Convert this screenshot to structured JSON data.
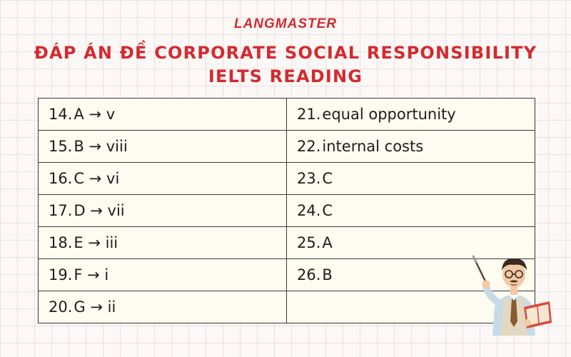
{
  "brand": {
    "name": "LANGMASTER",
    "color": "#d32a2f"
  },
  "title": {
    "line1": "ĐÁP ÁN ĐỀ CORPORATE SOCIAL RESPONSIBILITY",
    "line2": "IELTS READING",
    "color": "#d32a2f"
  },
  "answers": {
    "rows": [
      {
        "left_num": "14.",
        "left_ans": "A → v",
        "right_num": "21.",
        "right_ans": "equal opportunity"
      },
      {
        "left_num": "15.",
        "left_ans": "B → viii",
        "right_num": "22.",
        "right_ans": "internal costs"
      },
      {
        "left_num": "16.",
        "left_ans": "C → vi",
        "right_num": "23.",
        "right_ans": "C"
      },
      {
        "left_num": "17.",
        "left_ans": "D → vii",
        "right_num": "24.",
        "right_ans": "C"
      },
      {
        "left_num": "18.",
        "left_ans": "E → iii",
        "right_num": "25.",
        "right_ans": "A"
      },
      {
        "left_num": "19.",
        "left_ans": "F → i",
        "right_num": "26.",
        "right_ans": "B"
      },
      {
        "left_num": "20.",
        "left_ans": "G → ii",
        "right_num": "",
        "right_ans": ""
      }
    ]
  },
  "illustration": {
    "icon": "teacher-with-pointer-icon"
  }
}
